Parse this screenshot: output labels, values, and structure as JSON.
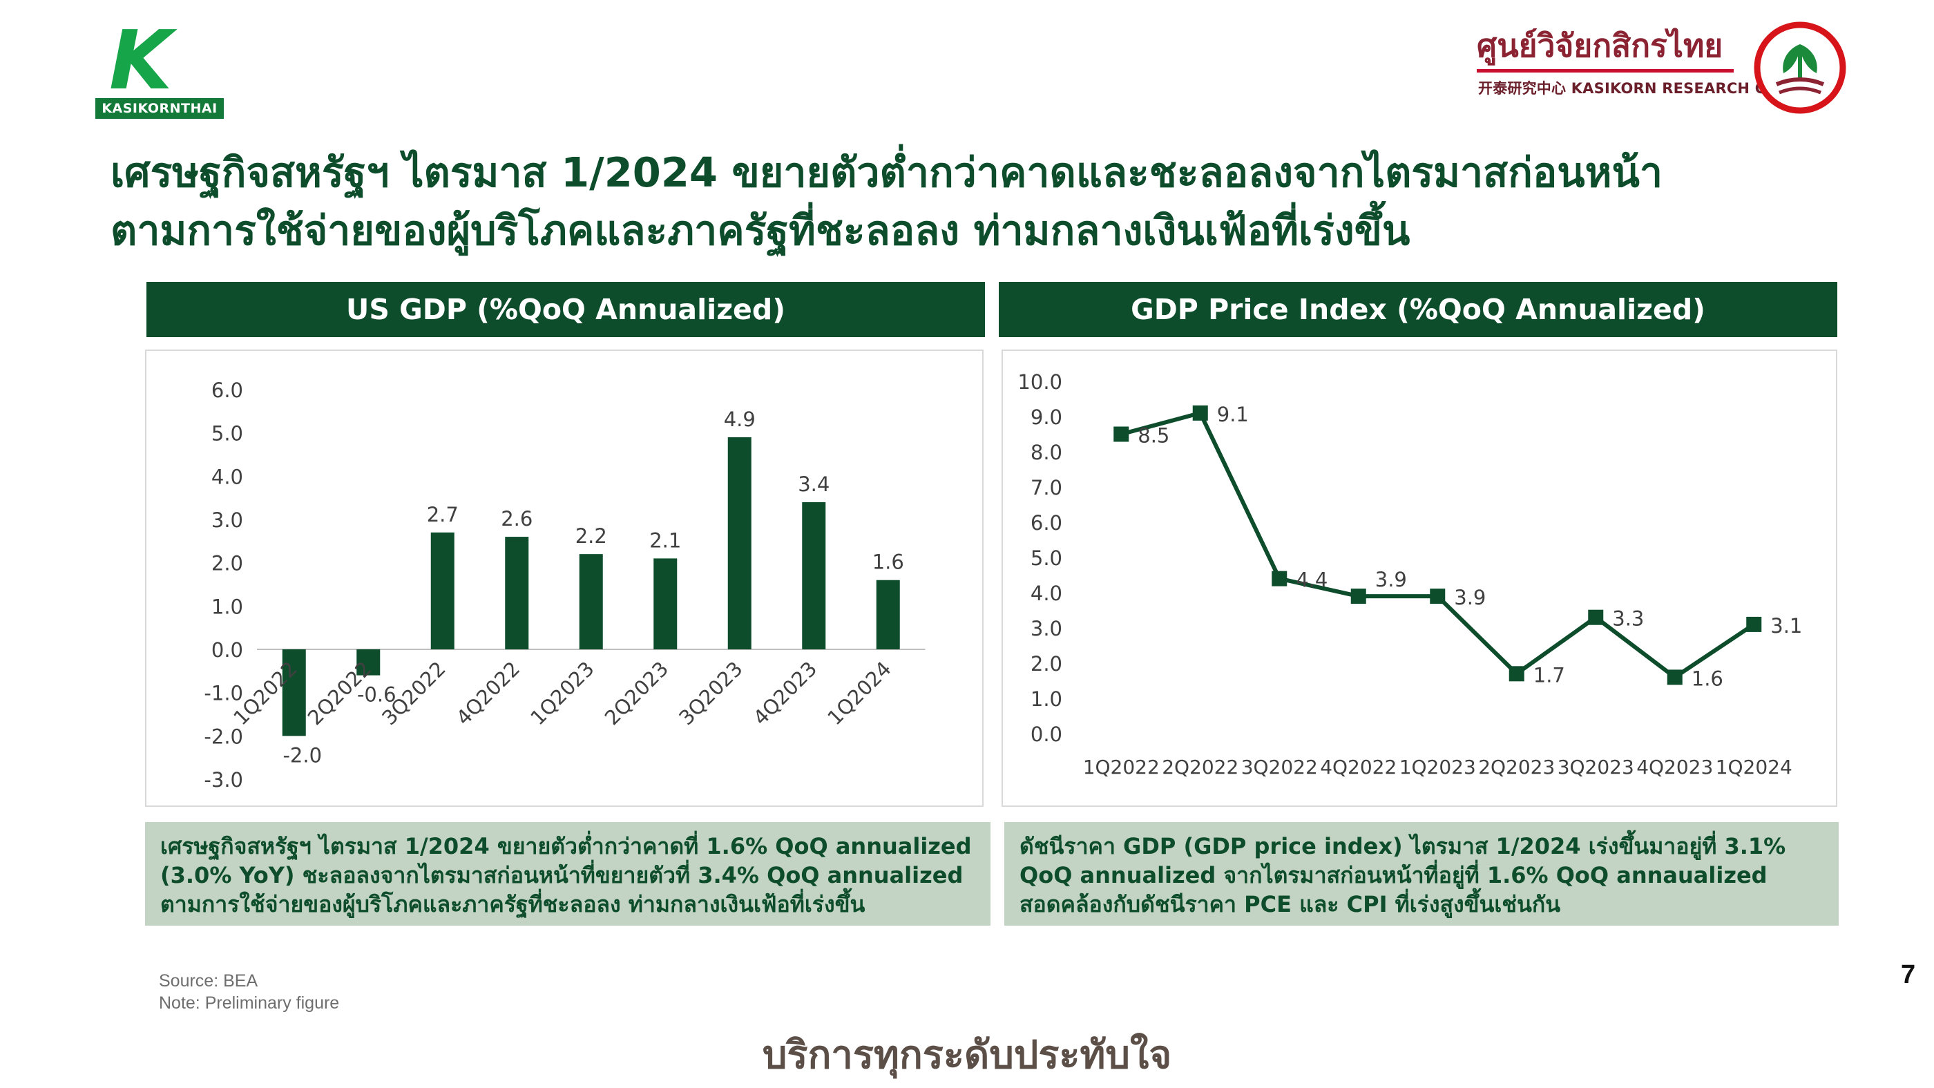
{
  "logos": {
    "kbank_letter": "K",
    "kbank_name": "KASIKORNTHAI",
    "krc_name_thai": "ศูนย์วิจัยกสิกรไทย",
    "krc_name_sub": "开泰研究中心 KASIKORN RESEARCH CENTER"
  },
  "title": {
    "line1": "เศรษฐกิจสหรัฐฯ ไตรมาส 1/2024 ขยายตัวต่ำกว่าคาดและชะลอลงจากไตรมาสก่อนหน้า",
    "line2": "ตามการใช้จ่ายของผู้บริโภคและภาครัฐที่ชะลอลง ท่ามกลางเงินเฟ้อที่เร่งขึ้น"
  },
  "colors": {
    "dark_green": "#0d4d2c",
    "summary_bg": "#c3d3c4",
    "kbank_green": "#17a54a",
    "krc_red": "#c8102e"
  },
  "chart_data": [
    {
      "type": "bar",
      "title": "US GDP (%QoQ Annualized)",
      "categories": [
        "1Q2022",
        "2Q2022",
        "3Q2022",
        "4Q2022",
        "1Q2023",
        "2Q2023",
        "3Q2023",
        "4Q2023",
        "1Q2024"
      ],
      "values": [
        -2.0,
        -0.6,
        2.7,
        2.6,
        2.2,
        2.1,
        4.9,
        3.4,
        1.6
      ],
      "data_labels": [
        "-2.0",
        "-0.6",
        "2.7",
        "2.6",
        "2.2",
        "2.1",
        "4.9",
        "3.4",
        "1.6"
      ],
      "ylim": [
        -3.0,
        6.0
      ],
      "yticks": [
        "6.0",
        "5.0",
        "4.0",
        "3.0",
        "2.0",
        "1.0",
        "0.0",
        "-1.0",
        "-2.0",
        "-3.0"
      ],
      "grid": false,
      "legend": "none"
    },
    {
      "type": "line",
      "title": "GDP Price Index (%QoQ Annualized)",
      "categories": [
        "1Q2022",
        "2Q2022",
        "3Q2022",
        "4Q2022",
        "1Q2023",
        "2Q2023",
        "3Q2023",
        "4Q2023",
        "1Q2024"
      ],
      "values": [
        8.5,
        9.1,
        4.4,
        3.9,
        3.9,
        1.7,
        3.3,
        1.6,
        3.1
      ],
      "data_labels": [
        "8.5",
        "9.1",
        "4.4",
        "3.9",
        "3.9",
        "1.7",
        "3.3",
        "1.6",
        "3.1"
      ],
      "ylim": [
        0.0,
        10.0
      ],
      "yticks": [
        "10.0",
        "9.0",
        "8.0",
        "7.0",
        "6.0",
        "5.0",
        "4.0",
        "3.0",
        "2.0",
        "1.0",
        "0.0"
      ],
      "grid": false,
      "legend": "none",
      "marker": "square"
    }
  ],
  "summary": {
    "left": "เศรษฐกิจสหรัฐฯ ไตรมาส 1/2024 ขยายตัวต่ำกว่าคาดที่ 1.6% QoQ annualized (3.0% YoY) ชะลอลงจากไตรมาสก่อนหน้าที่ขยายตัวที่ 3.4% QoQ annualized ตามการใช้จ่ายของผู้บริโภคและภาครัฐที่ชะลอลง ท่ามกลางเงินเฟ้อที่เร่งขึ้น",
    "right": "ดัชนีราคา GDP (GDP price index) ไตรมาส 1/2024 เร่งขึ้นมาอยู่ที่ 3.1% QoQ annualized จากไตรมาสก่อนหน้าที่อยู่ที่ 1.6% QoQ annaualized สอดคล้องกับดัชนีราคา PCE และ CPI ที่เร่งสูงขึ้นเช่นกัน"
  },
  "footer": {
    "source": "Source: BEA",
    "note": "Note: Preliminary figure",
    "page_number": "7",
    "slogan": "บริการทุกระดับประทับใจ"
  }
}
